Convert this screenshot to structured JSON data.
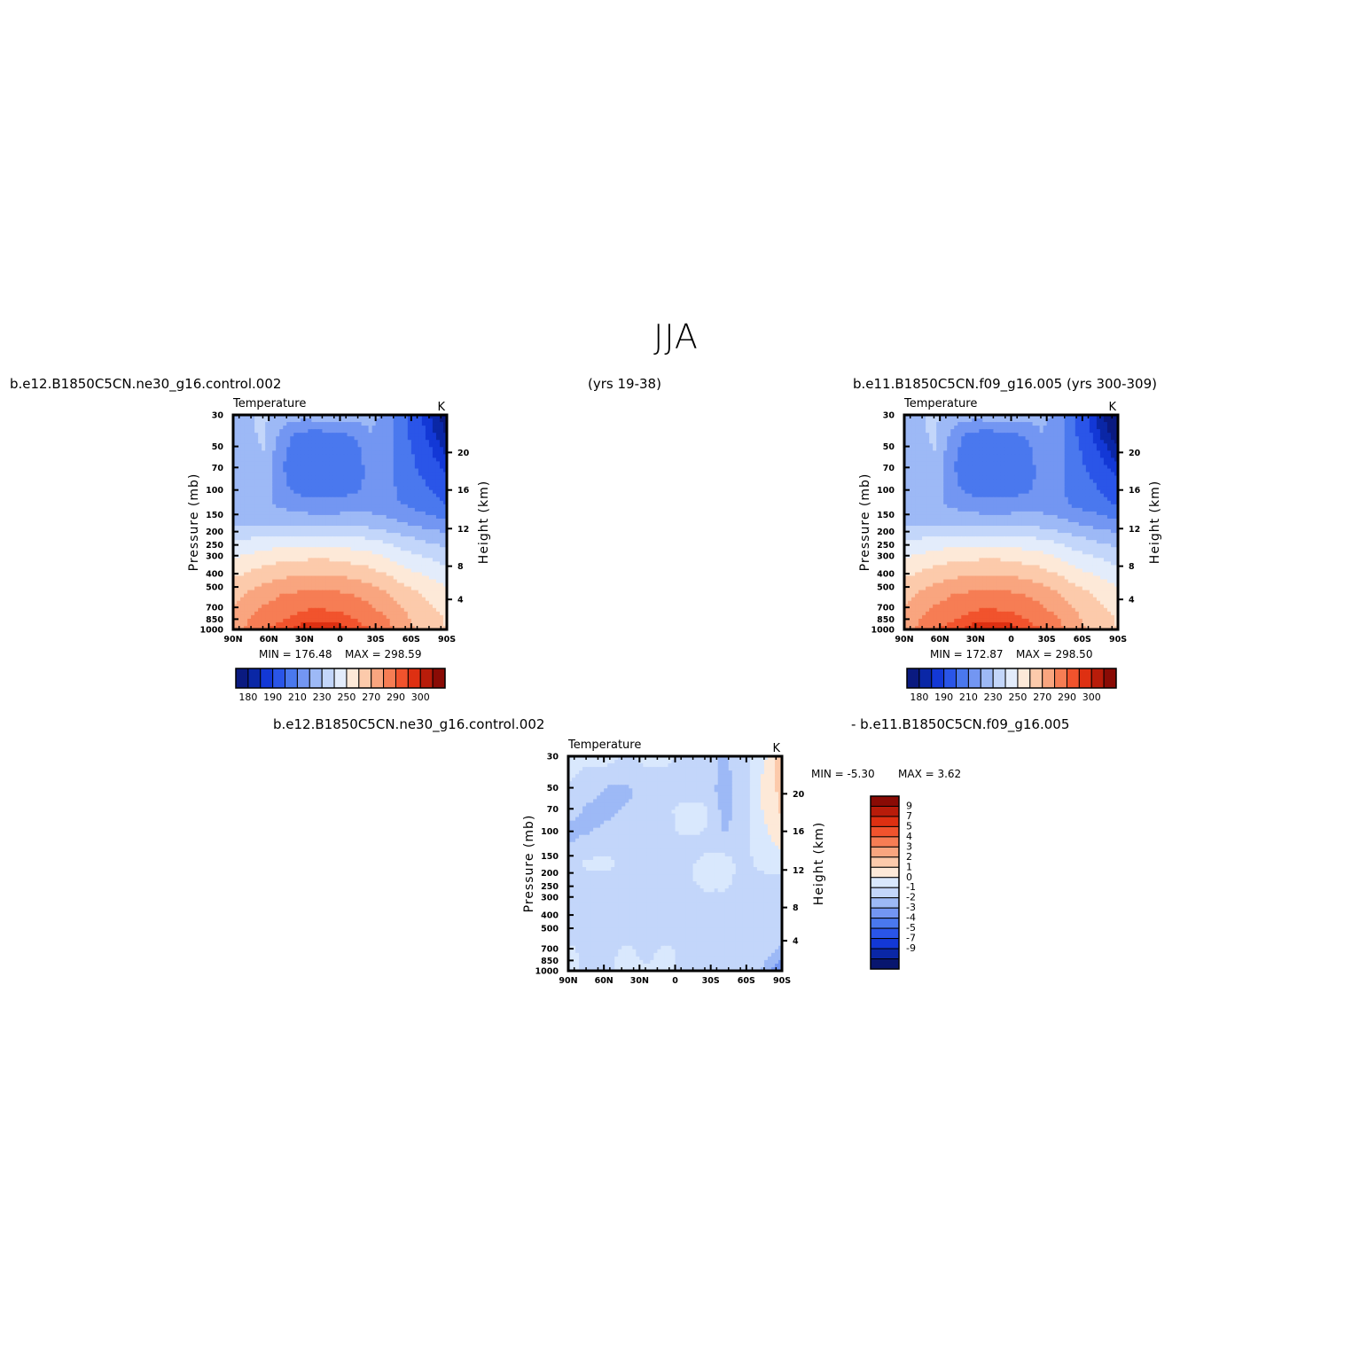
{
  "title": "JJA",
  "header": {
    "left_case": "b.e12.B1850C5CN.ne30_g16.control.002",
    "middle_years": "(yrs 19-38)",
    "right_case": "b.e11.B1850C5CN.f09_g16.005 (yrs 300-309)",
    "diff_left": "b.e12.B1850C5CN.ne30_g16.control.002",
    "diff_right": "- b.e11.B1850C5CN.f09_g16.005"
  },
  "chart_data": [
    {
      "type": "heatmap",
      "panel": "left",
      "field_label": "Temperature",
      "units": "K",
      "ylabel": "Pressure (mb)",
      "y2label": "Height (km)",
      "x_ticks": [
        "90N",
        "60N",
        "30N",
        "0",
        "30S",
        "60S",
        "90S"
      ],
      "y_ticks": [
        30,
        50,
        70,
        100,
        150,
        200,
        250,
        300,
        400,
        500,
        700,
        850,
        1000
      ],
      "y2_ticks": [
        20,
        16,
        12,
        8,
        4
      ],
      "min_text": "MIN = 176.48",
      "max_text": "MAX = 298.59",
      "colorbar_labels": [
        "180",
        "190",
        "210",
        "230",
        "250",
        "270",
        "290",
        "300"
      ],
      "levels": [
        180,
        185,
        190,
        200,
        210,
        220,
        230,
        240,
        250,
        260,
        270,
        280,
        290,
        295,
        300
      ],
      "colors": [
        "#0a1a80",
        "#0a27a6",
        "#1338d6",
        "#2a55e8",
        "#4a78ee",
        "#7396f2",
        "#9db9f6",
        "#c3d6fa",
        "#e3ecfb",
        "#fde9d8",
        "#fccaab",
        "#f9a57f",
        "#f67d54",
        "#f1532d",
        "#de3012",
        "#b81c0a",
        "#8a0b05"
      ],
      "rows": [
        [
          225,
          228,
          232,
          228,
          225,
          224,
          229,
          230,
          226,
          222,
          218,
          205,
          194,
          184,
          176
        ],
        [
          226,
          229,
          231,
          220,
          210,
          208,
          208,
          209,
          212,
          220,
          217,
          204,
          195,
          186,
          179
        ],
        [
          227,
          229,
          230,
          215,
          205,
          203,
          203,
          203,
          206,
          218,
          216,
          206,
          198,
          190,
          183
        ],
        [
          226,
          228,
          228,
          214,
          202,
          200,
          200,
          200,
          203,
          215,
          214,
          207,
          200,
          194,
          188
        ],
        [
          224,
          227,
          226,
          216,
          206,
          204,
          203,
          204,
          207,
          214,
          213,
          208,
          204,
          199,
          194
        ],
        [
          222,
          224,
          222,
          218,
          216,
          214,
          213,
          214,
          215,
          215,
          213,
          210,
          207,
          204,
          200
        ],
        [
          228,
          228,
          228,
          227,
          226,
          226,
          226,
          226,
          226,
          225,
          223,
          220,
          217,
          214,
          212
        ],
        [
          240,
          241,
          243,
          244,
          245,
          245,
          245,
          244,
          243,
          241,
          238,
          234,
          231,
          228,
          226
        ],
        [
          250,
          252,
          255,
          257,
          258,
          259,
          259,
          258,
          256,
          254,
          250,
          246,
          242,
          239,
          236
        ],
        [
          259,
          262,
          266,
          268,
          270,
          271,
          271,
          270,
          268,
          265,
          261,
          256,
          252,
          248,
          245
        ],
        [
          266,
          271,
          275,
          279,
          281,
          282,
          282,
          281,
          279,
          275,
          271,
          266,
          261,
          257,
          254
        ],
        [
          271,
          278,
          283,
          286,
          289,
          291,
          291,
          290,
          287,
          283,
          278,
          272,
          266,
          262,
          258
        ],
        [
          274,
          283,
          289,
          293,
          296,
          298,
          298,
          297,
          294,
          290,
          284,
          277,
          269,
          264,
          260
        ]
      ]
    },
    {
      "type": "heatmap",
      "panel": "right",
      "field_label": "Temperature",
      "units": "K",
      "ylabel": "Pressure (mb)",
      "y2label": "Height (km)",
      "x_ticks": [
        "90N",
        "60N",
        "30N",
        "0",
        "30S",
        "60S",
        "90S"
      ],
      "y_ticks": [
        30,
        50,
        70,
        100,
        150,
        200,
        250,
        300,
        400,
        500,
        700,
        850,
        1000
      ],
      "y2_ticks": [
        20,
        16,
        12,
        8,
        4
      ],
      "min_text": "MIN = 172.87",
      "max_text": "MAX = 298.50",
      "colorbar_labels": [
        "180",
        "190",
        "210",
        "230",
        "250",
        "270",
        "290",
        "300"
      ],
      "levels": [
        180,
        185,
        190,
        200,
        210,
        220,
        230,
        240,
        250,
        260,
        270,
        280,
        290,
        295,
        300
      ],
      "colors": [
        "#0a1a80",
        "#0a27a6",
        "#1338d6",
        "#2a55e8",
        "#4a78ee",
        "#7396f2",
        "#9db9f6",
        "#c3d6fa",
        "#e3ecfb",
        "#fde9d8",
        "#fccaab",
        "#f9a57f",
        "#f67d54",
        "#f1532d",
        "#de3012",
        "#b81c0a",
        "#8a0b05"
      ],
      "rows": [
        [
          225,
          228,
          232,
          228,
          225,
          224,
          229,
          230,
          226,
          222,
          218,
          204,
          191,
          180,
          173
        ],
        [
          226,
          229,
          231,
          220,
          210,
          208,
          208,
          209,
          212,
          220,
          217,
          203,
          192,
          183,
          176
        ],
        [
          227,
          229,
          230,
          215,
          205,
          203,
          203,
          203,
          206,
          218,
          216,
          205,
          196,
          188,
          181
        ],
        [
          226,
          228,
          228,
          214,
          202,
          200,
          200,
          200,
          203,
          215,
          214,
          206,
          199,
          192,
          186
        ],
        [
          224,
          227,
          226,
          216,
          206,
          204,
          203,
          204,
          207,
          214,
          213,
          207,
          203,
          198,
          193
        ],
        [
          222,
          224,
          222,
          218,
          216,
          214,
          213,
          214,
          215,
          215,
          213,
          209,
          206,
          203,
          199
        ],
        [
          228,
          228,
          228,
          227,
          226,
          226,
          226,
          226,
          226,
          225,
          223,
          220,
          217,
          214,
          212
        ],
        [
          240,
          241,
          243,
          244,
          245,
          245,
          245,
          244,
          243,
          241,
          238,
          234,
          231,
          228,
          226
        ],
        [
          250,
          252,
          255,
          257,
          258,
          259,
          259,
          258,
          256,
          254,
          250,
          246,
          242,
          239,
          236
        ],
        [
          259,
          262,
          266,
          268,
          270,
          271,
          271,
          270,
          268,
          265,
          261,
          256,
          252,
          248,
          245
        ],
        [
          266,
          271,
          275,
          279,
          281,
          282,
          282,
          281,
          279,
          275,
          271,
          266,
          261,
          257,
          254
        ],
        [
          271,
          278,
          283,
          286,
          289,
          291,
          291,
          290,
          287,
          283,
          278,
          272,
          266,
          262,
          258
        ],
        [
          274,
          283,
          289,
          293,
          296,
          298,
          298,
          297,
          294,
          290,
          284,
          277,
          269,
          264,
          260
        ]
      ]
    },
    {
      "type": "heatmap",
      "panel": "difference",
      "field_label": "Temperature",
      "units": "K",
      "ylabel": "Pressure (mb)",
      "y2label": "Height (km)",
      "x_ticks": [
        "90N",
        "60N",
        "30N",
        "0",
        "30S",
        "60S",
        "90S"
      ],
      "y_ticks": [
        30,
        50,
        70,
        100,
        150,
        200,
        250,
        300,
        400,
        500,
        700,
        850,
        1000
      ],
      "y2_ticks": [
        20,
        16,
        12,
        8,
        4
      ],
      "min_text": "MIN =   -5.30",
      "max_text": "MAX =    3.62",
      "colorbar_labels": [
        "9",
        "7",
        "5",
        "4",
        "3",
        "2",
        "1",
        "0",
        "-1",
        "-2",
        "-3",
        "-4",
        "-5",
        "-7",
        "-9"
      ],
      "levels": [
        -9,
        -7,
        -5,
        -4,
        -3,
        -2,
        -1,
        0,
        1,
        2,
        3,
        4,
        5,
        7,
        9
      ],
      "colors": [
        "#08166e",
        "#0a27a6",
        "#1338d6",
        "#2a55e8",
        "#4a78ee",
        "#7396f2",
        "#9db9f6",
        "#c3d6fa",
        "#d9e8fd",
        "#fde9d8",
        "#fccaab",
        "#f9a57f",
        "#f67d54",
        "#f1532d",
        "#de3012",
        "#b81c0a",
        "#8a0b05"
      ],
      "rows": [
        [
          0.3,
          0.2,
          0.5,
          -0.2,
          0.3,
          0.4,
          -0.3,
          -0.4,
          -1.2,
          -0.4,
          0.5,
          3.0
        ],
        [
          0.2,
          -0.2,
          -0.5,
          -0.6,
          -0.2,
          -0.3,
          -0.4,
          -0.5,
          -1.3,
          -0.5,
          1.0,
          2.5
        ],
        [
          -0.3,
          -0.6,
          -1.2,
          -1.3,
          -0.5,
          -0.3,
          -0.3,
          -0.4,
          -1.4,
          -0.6,
          1.2,
          2.3
        ],
        [
          -0.4,
          -1.2,
          -1.4,
          -0.8,
          -0.4,
          -0.2,
          0.3,
          0.2,
          -1.3,
          -0.6,
          1.0,
          2.2
        ],
        [
          -1.3,
          -1.2,
          -0.8,
          -0.5,
          -0.3,
          -0.2,
          0.2,
          0.1,
          -1.2,
          -0.5,
          0.8,
          1.8
        ],
        [
          -1.0,
          -0.6,
          -0.4,
          -0.3,
          -0.3,
          -0.3,
          -0.2,
          -0.3,
          -0.4,
          -0.3,
          0.5,
          1.2
        ],
        [
          -0.4,
          0.2,
          0.3,
          -0.3,
          -0.3,
          -0.3,
          -0.3,
          0.3,
          0.4,
          -0.3,
          0.3,
          0.5
        ],
        [
          -0.3,
          -0.3,
          -0.3,
          -0.3,
          -0.3,
          -0.3,
          -0.3,
          0.3,
          0.3,
          -0.3,
          -0.3,
          -0.2
        ],
        [
          -0.3,
          -0.3,
          -0.3,
          -0.3,
          -0.3,
          -0.3,
          -0.3,
          -0.3,
          -0.3,
          -0.3,
          -0.3,
          -0.3
        ],
        [
          -0.3,
          -0.3,
          -0.3,
          -0.3,
          -0.3,
          -0.3,
          -0.3,
          -0.3,
          -0.3,
          -0.3,
          -0.3,
          -0.3
        ],
        [
          -0.3,
          -0.3,
          -0.3,
          -0.3,
          -0.3,
          -0.3,
          -0.3,
          -0.3,
          -0.3,
          -0.3,
          -0.3,
          -0.4
        ],
        [
          0.3,
          -0.3,
          -0.3,
          0.3,
          -0.3,
          0.3,
          -0.3,
          -0.3,
          -0.3,
          -0.3,
          -0.5,
          -1.5
        ],
        [
          0.3,
          -0.2,
          -0.2,
          0.3,
          0.2,
          0.3,
          -0.2,
          -0.3,
          -0.3,
          -0.4,
          -1.2,
          -3.0
        ]
      ]
    }
  ]
}
